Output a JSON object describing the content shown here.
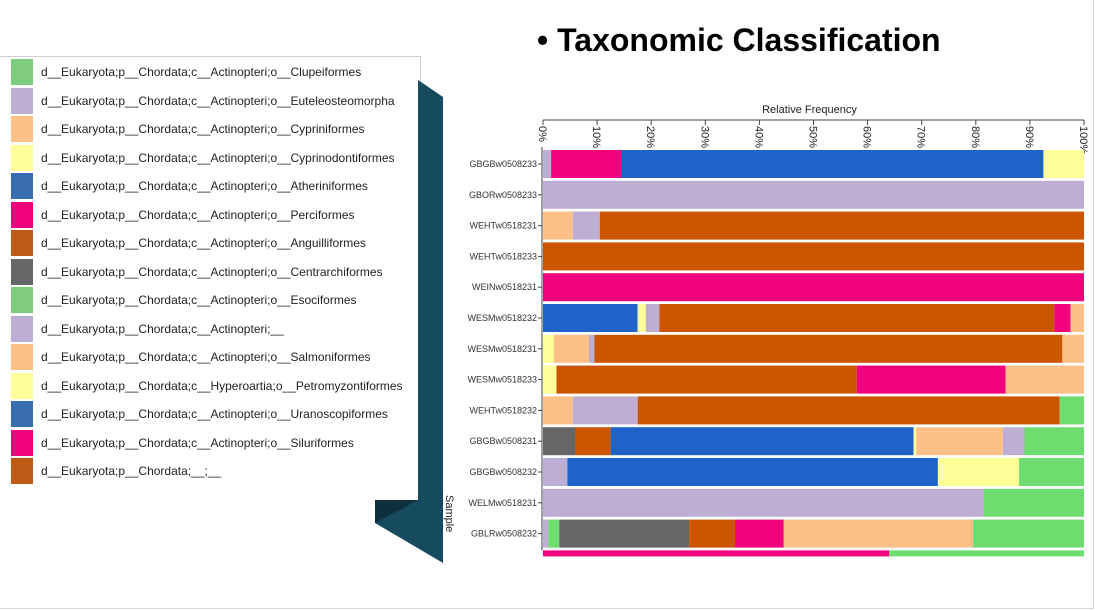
{
  "slide": {
    "title_bullet": "•",
    "title": "Taxonomic Classification"
  },
  "legend": [
    {
      "label": "d__Eukaryota;p__Chordata;c__Actinopteri;o__Clupeiformes",
      "color": "#7fcc7f"
    },
    {
      "label": "d__Eukaryota;p__Chordata;c__Actinopteri;o__Euteleosteomorpha",
      "color": "#beaed4"
    },
    {
      "label": "d__Eukaryota;p__Chordata;c__Actinopteri;o__Cypriniformes",
      "color": "#fdc086"
    },
    {
      "label": "d__Eukaryota;p__Chordata;c__Actinopteri;o__Cyprinodontiformes",
      "color": "#ffff99"
    },
    {
      "label": "d__Eukaryota;p__Chordata;c__Actinopteri;o__Atheriniformes",
      "color": "#386cb0"
    },
    {
      "label": "d__Eukaryota;p__Chordata;c__Actinopteri;o__Perciformes",
      "color": "#f0027f"
    },
    {
      "label": "d__Eukaryota;p__Chordata;c__Actinopteri;o__Anguilliformes",
      "color": "#bf5b17"
    },
    {
      "label": "d__Eukaryota;p__Chordata;c__Actinopteri;o__Centrarchiformes",
      "color": "#666666"
    },
    {
      "label": "d__Eukaryota;p__Chordata;c__Actinopteri;o__Esociformes",
      "color": "#7fcc7f"
    },
    {
      "label": "d__Eukaryota;p__Chordata;c__Actinopteri;__",
      "color": "#beaed4"
    },
    {
      "label": "d__Eukaryota;p__Chordata;c__Actinopteri;o__Salmoniformes",
      "color": "#fdc086"
    },
    {
      "label": "d__Eukaryota;p__Chordata;c__Hyperoartia;o__Petromyzontiformes",
      "color": "#ffff99"
    },
    {
      "label": "d__Eukaryota;p__Chordata;c__Actinopteri;o__Uranoscopiformes",
      "color": "#386cb0"
    },
    {
      "label": "d__Eukaryota;p__Chordata;c__Actinopteri;o__Siluriformes",
      "color": "#f0027f"
    },
    {
      "label": "d__Eukaryota;p__Chordata;__;__",
      "color": "#bf5b17"
    }
  ],
  "chart_data": {
    "type": "bar",
    "orientation": "horizontal",
    "stacked": true,
    "xlabel": "Relative Frequency",
    "ylabel": "Sample",
    "xlim": [
      0,
      100
    ],
    "x_ticks": [
      "0%",
      "10%",
      "20%",
      "30%",
      "40%",
      "50%",
      "60%",
      "70%",
      "80%",
      "90%",
      "100%"
    ],
    "samples": [
      {
        "name": "GBGBw0508233",
        "segments": [
          {
            "color": "#beaed4",
            "value": 1.5
          },
          {
            "color": "#f0027f",
            "value": 13
          },
          {
            "color": "#1f63c9",
            "value": 78
          },
          {
            "color": "#ffff99",
            "value": 7.5
          }
        ]
      },
      {
        "name": "GBORw0508233",
        "segments": [
          {
            "color": "#beaed4",
            "value": 100
          }
        ]
      },
      {
        "name": "WEHTw0518231",
        "segments": [
          {
            "color": "#fdc086",
            "value": 5.5
          },
          {
            "color": "#beaed4",
            "value": 5
          },
          {
            "color": "#cc5500",
            "value": 89.5
          }
        ]
      },
      {
        "name": "WEHTw0518233",
        "segments": [
          {
            "color": "#cc5500",
            "value": 100
          }
        ]
      },
      {
        "name": "WEINw0518231",
        "segments": [
          {
            "color": "#f0027f",
            "value": 100
          }
        ]
      },
      {
        "name": "WESMw0518232",
        "segments": [
          {
            "color": "#1f63c9",
            "value": 17.5
          },
          {
            "color": "#ffff99",
            "value": 1.5
          },
          {
            "color": "#beaed4",
            "value": 2.5
          },
          {
            "color": "#cc5500",
            "value": 73
          },
          {
            "color": "#f0027f",
            "value": 3
          },
          {
            "color": "#fdc086",
            "value": 2.5
          }
        ]
      },
      {
        "name": "WESMw0518231",
        "segments": [
          {
            "color": "#ffff99",
            "value": 2
          },
          {
            "color": "#fdc086",
            "value": 6.5
          },
          {
            "color": "#beaed4",
            "value": 1
          },
          {
            "color": "#cc5500",
            "value": 86.5
          },
          {
            "color": "#fdc086",
            "value": 4
          }
        ]
      },
      {
        "name": "WESMw0518233",
        "segments": [
          {
            "color": "#ffff99",
            "value": 2.5
          },
          {
            "color": "#cc5500",
            "value": 55.5
          },
          {
            "color": "#f0027f",
            "value": 27.5
          },
          {
            "color": "#fdc086",
            "value": 14.5
          }
        ]
      },
      {
        "name": "WEHTw0518232",
        "segments": [
          {
            "color": "#fdc086",
            "value": 5.5
          },
          {
            "color": "#beaed4",
            "value": 12
          },
          {
            "color": "#cc5500",
            "value": 78
          },
          {
            "color": "#6fdc6f",
            "value": 4.5
          }
        ]
      },
      {
        "name": "GBGBw0508231",
        "segments": [
          {
            "color": "#666666",
            "value": 6
          },
          {
            "color": "#cc5500",
            "value": 6.5
          },
          {
            "color": "#1f63c9",
            "value": 56
          },
          {
            "color": "#ffff99",
            "value": 0.5
          },
          {
            "color": "#fdc086",
            "value": 16
          },
          {
            "color": "#beaed4",
            "value": 4
          },
          {
            "color": "#6fdc6f",
            "value": 11
          }
        ]
      },
      {
        "name": "GBGBw0508232",
        "segments": [
          {
            "color": "#beaed4",
            "value": 4.5
          },
          {
            "color": "#1f63c9",
            "value": 68.5
          },
          {
            "color": "#ffff99",
            "value": 15
          },
          {
            "color": "#6fdc6f",
            "value": 12
          }
        ]
      },
      {
        "name": "WELMw0518231",
        "segments": [
          {
            "color": "#beaed4",
            "value": 81.5
          },
          {
            "color": "#6fdc6f",
            "value": 18.5
          }
        ]
      },
      {
        "name": "GBLRw0508232",
        "segments": [
          {
            "color": "#beaed4",
            "value": 1
          },
          {
            "color": "#6fdc6f",
            "value": 2
          },
          {
            "color": "#666666",
            "value": 24
          },
          {
            "color": "#cc5500",
            "value": 8.5
          },
          {
            "color": "#f0027f",
            "value": 9
          },
          {
            "color": "#fdc086",
            "value": 35
          },
          {
            "color": "#6fdc6f",
            "value": 20.5
          }
        ]
      }
    ],
    "partial_bottom_bar": [
      {
        "color": "#f0027f",
        "value": 64
      },
      {
        "color": "#6fdc6f",
        "value": 36
      }
    ]
  }
}
